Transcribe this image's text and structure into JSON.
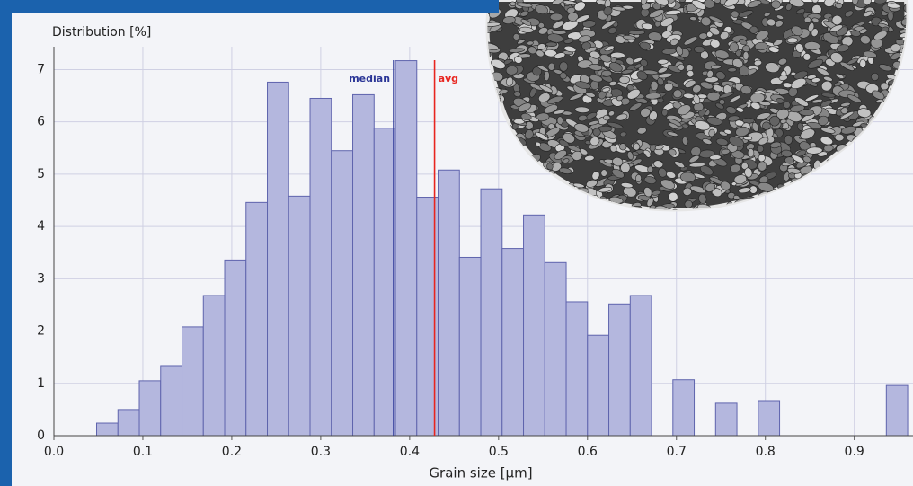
{
  "chart_data": {
    "type": "histogram",
    "x_label": "Grain size [µm]",
    "y_label": "Distribution [%]",
    "bins": [
      0.048,
      0.072,
      0.096,
      0.12,
      0.144,
      0.168,
      0.192,
      0.216,
      0.24,
      0.264,
      0.288,
      0.312,
      0.336,
      0.36,
      0.384,
      0.408,
      0.432,
      0.456,
      0.48,
      0.504,
      0.528,
      0.552,
      0.576,
      0.6,
      0.624,
      0.648,
      0.672,
      0.696,
      0.72,
      0.744,
      0.768,
      0.792,
      0.816,
      0.84,
      0.864,
      0.888,
      0.912,
      0.936,
      0.96
    ],
    "counts": [
      0.24,
      0.5,
      1.05,
      1.34,
      2.08,
      2.68,
      3.36,
      4.46,
      6.76,
      4.58,
      6.45,
      5.45,
      6.52,
      5.88,
      7.17,
      4.56,
      5.08,
      3.41,
      4.72,
      3.58,
      4.22,
      3.31,
      2.56,
      1.92,
      2.52,
      2.68,
      0,
      1.07,
      0,
      0.62,
      0,
      0.67,
      0,
      0,
      0,
      0,
      0,
      0.96
    ],
    "color": "#b4b7de",
    "xlim": [
      0,
      0.966
    ],
    "ylim": [
      0,
      7.3
    ],
    "xticks": [
      {
        "value": 0,
        "label": "0.0"
      },
      0.1,
      0.2,
      0.3,
      0.4,
      0.5,
      0.6,
      0.7,
      0.8,
      0.9
    ],
    "yticks": [
      0,
      1,
      2,
      3,
      4,
      5,
      6,
      7
    ],
    "grid": true,
    "annotations": [
      {
        "label": "median",
        "value": 0.382,
        "color": "#2a3596"
      },
      {
        "label": "avg",
        "value": 0.428,
        "color": "#e8251f"
      }
    ]
  }
}
